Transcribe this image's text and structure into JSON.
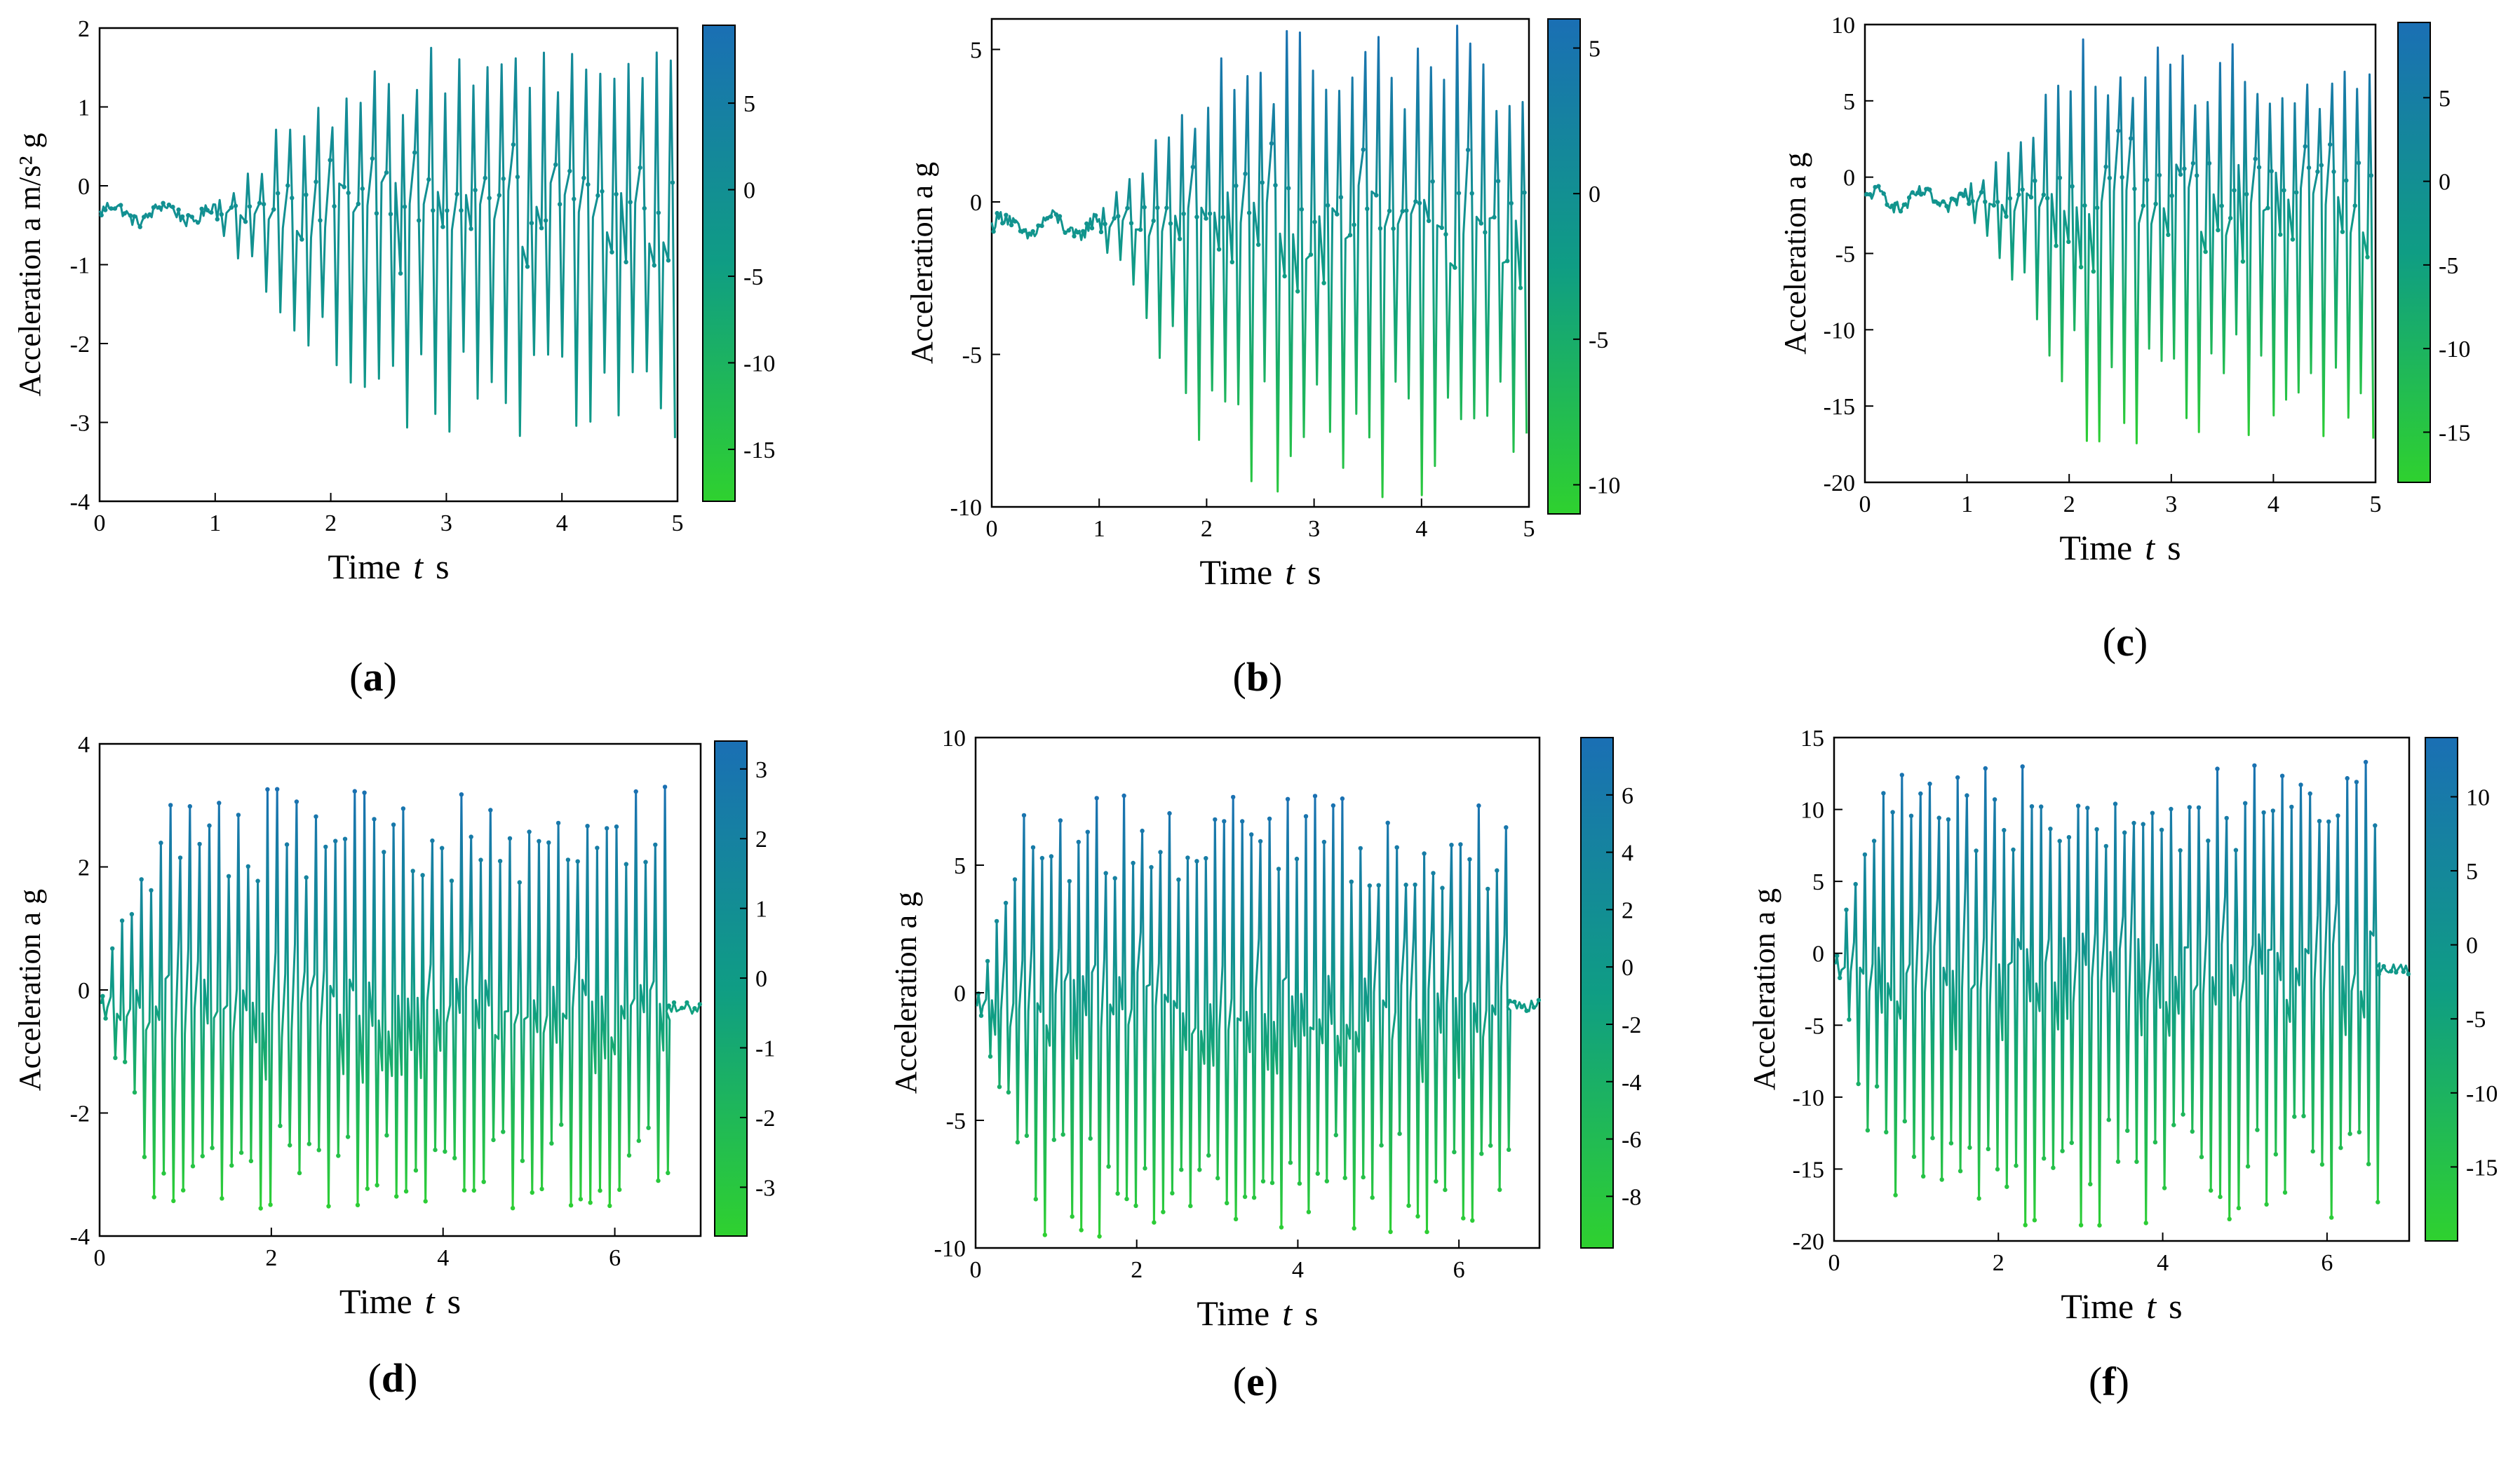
{
  "figure": {
    "description_title": "",
    "colors": {
      "low": "#2fd12f",
      "mid": "#0f9d84",
      "high": "#1a6fb4",
      "axis": "#000000"
    }
  },
  "chart_data": [
    {
      "type": "line",
      "panel_label": "(a)",
      "xlabel": "Time  t  s",
      "ylabel": "Acceleration a m/s² g",
      "xlim": [
        0,
        5
      ],
      "ylim": [
        -4,
        2
      ],
      "xticks": [
        "0",
        "1",
        "2",
        "3",
        "4",
        "5"
      ],
      "yticks": [
        "-4",
        "-3",
        "-2",
        "-1",
        "0",
        "1",
        "2"
      ],
      "colorbar": {
        "range": [
          -18,
          9.5
        ],
        "ticks": [
          "5",
          "0",
          "-5",
          "-10",
          "-15"
        ]
      },
      "series": [
        {
          "name": "acceleration",
          "duration": 5,
          "baseline": -0.35,
          "peak_max": 1.75,
          "trough_min": -3.25,
          "cycles": 41,
          "ramp_start": 1.0,
          "ramp_full": 2.1
        }
      ]
    },
    {
      "type": "line",
      "panel_label": "(b)",
      "xlabel": "Time  t  s",
      "ylabel": "Acceleration a   g",
      "xlim": [
        0,
        5
      ],
      "ylim": [
        -10,
        6
      ],
      "xticks": [
        "0",
        "1",
        "2",
        "3",
        "4",
        "5"
      ],
      "yticks": [
        "-10",
        "-5",
        "0",
        "5"
      ],
      "colorbar": {
        "range": [
          -11,
          6
        ],
        "ticks": [
          "5",
          "0",
          "-5",
          "-10"
        ]
      },
      "series": [
        {
          "name": "acceleration",
          "duration": 5,
          "baseline": -0.8,
          "peak_max": 5.8,
          "trough_min": -9.8,
          "cycles": 41,
          "ramp_start": 1.0,
          "ramp_full": 2.1
        }
      ]
    },
    {
      "type": "line",
      "panel_label": "(c)",
      "xlabel": "Time  t  s",
      "ylabel": "Acceleration a   g",
      "xlim": [
        0,
        5
      ],
      "ylim": [
        -20,
        10
      ],
      "xticks": [
        "0",
        "1",
        "2",
        "3",
        "4",
        "5"
      ],
      "yticks": [
        "-20",
        "-15",
        "-10",
        "-5",
        "0",
        "5",
        "10"
      ],
      "colorbar": {
        "range": [
          -18,
          9.5
        ],
        "ticks": [
          "5",
          "0",
          "-5",
          "-10",
          "-15"
        ]
      },
      "series": [
        {
          "name": "acceleration",
          "duration": 5,
          "baseline": -1.5,
          "peak_max": 9.3,
          "trough_min": -17.5,
          "cycles": 41,
          "ramp_start": 1.0,
          "ramp_full": 2.1
        }
      ]
    },
    {
      "type": "line",
      "panel_label": "(d)",
      "xlabel": "Time  t  s",
      "ylabel": "Acceleration a   g",
      "xlim": [
        0,
        7
      ],
      "ylim": [
        -4,
        4
      ],
      "xticks": [
        "0",
        "2",
        "4",
        "6"
      ],
      "yticks": [
        "-4",
        "-2",
        "0",
        "2",
        "4"
      ],
      "colorbar": {
        "range": [
          -3.7,
          3.4
        ],
        "ticks": [
          "3",
          "2",
          "1",
          "0",
          "-1",
          "-2",
          "-3"
        ]
      },
      "series": [
        {
          "name": "acceleration",
          "duration": 7,
          "baseline": -0.3,
          "peak_max": 3.3,
          "trough_min": -3.6,
          "cycles": 62,
          "ramp_start": 0.0,
          "ramp_full": 0.6,
          "end_time": 6.6
        }
      ]
    },
    {
      "type": "line",
      "panel_label": "(e)",
      "xlabel": "Time  t  s",
      "ylabel": "Acceleration a   g",
      "xlim": [
        0,
        7
      ],
      "ylim": [
        -10,
        10
      ],
      "xticks": [
        "0",
        "2",
        "4",
        "6"
      ],
      "yticks": [
        "-10",
        "-5",
        "0",
        "5",
        "10"
      ],
      "colorbar": {
        "range": [
          -9.8,
          8
        ],
        "ticks": [
          "6",
          "4",
          "2",
          "0",
          "-2",
          "-4",
          "-6",
          "-8"
        ]
      },
      "series": [
        {
          "name": "acceleration",
          "duration": 7,
          "baseline": -0.5,
          "peak_max": 7.8,
          "trough_min": -9.6,
          "cycles": 62,
          "ramp_start": 0.0,
          "ramp_full": 0.6,
          "end_time": 6.6
        }
      ]
    },
    {
      "type": "line",
      "panel_label": "(f)",
      "xlabel": "Time  t  s",
      "ylabel": "Acceleration a   g",
      "xlim": [
        0,
        7
      ],
      "ylim": [
        -20,
        15
      ],
      "xticks": [
        "0",
        "2",
        "4",
        "6"
      ],
      "yticks": [
        "-20",
        "-15",
        "-10",
        "-5",
        "0",
        "5",
        "10",
        "15"
      ],
      "colorbar": {
        "range": [
          -20,
          14
        ],
        "ticks": [
          "10",
          "5",
          "0",
          "-5",
          "-10",
          "-15"
        ]
      },
      "series": [
        {
          "name": "acceleration",
          "duration": 7,
          "baseline": -1.0,
          "peak_max": 13.5,
          "trough_min": -19.5,
          "cycles": 62,
          "ramp_start": 0.0,
          "ramp_full": 0.6,
          "end_time": 6.6
        }
      ]
    }
  ]
}
